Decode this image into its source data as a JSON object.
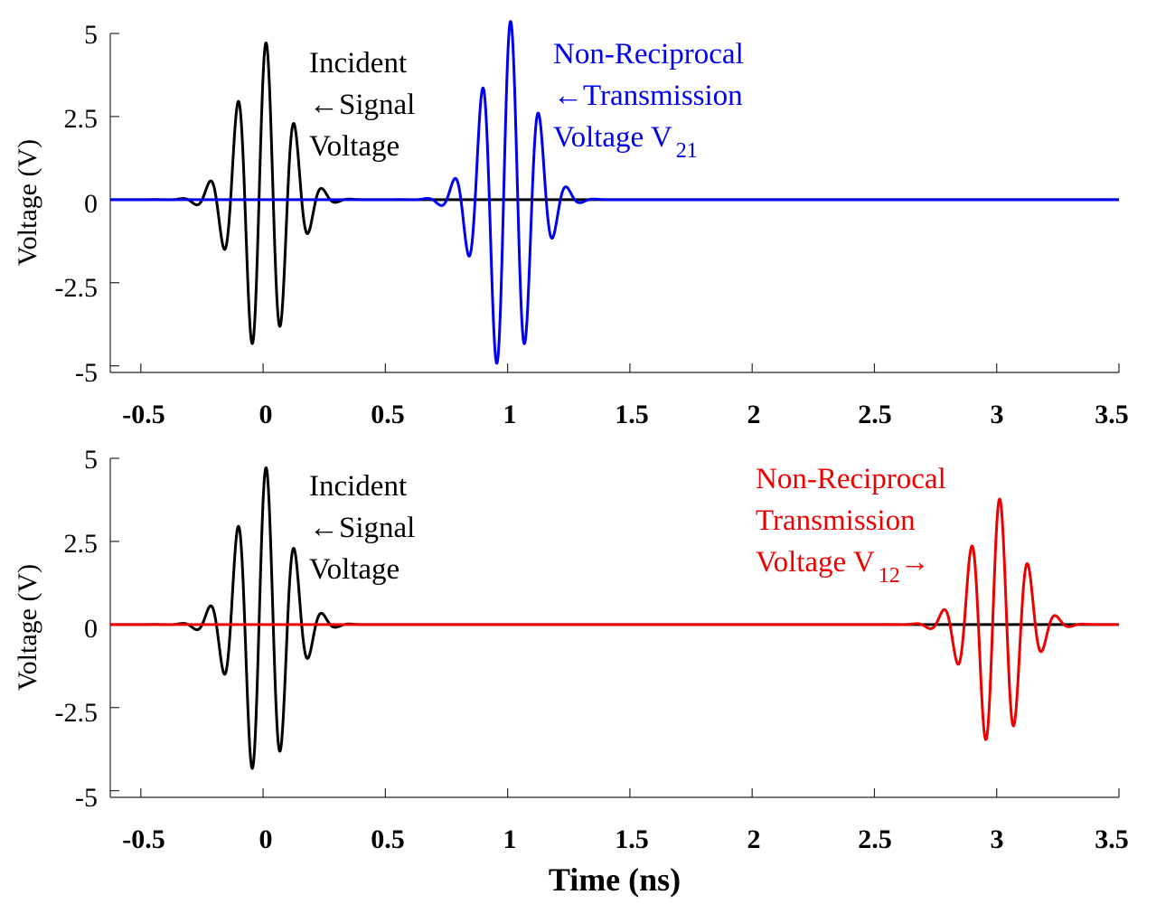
{
  "chart_data": [
    {
      "type": "line",
      "ylabel": "Voltage (V)",
      "xlabel": "",
      "xlim": [
        -0.625,
        3.5
      ],
      "ylim": [
        -5.2,
        5.0
      ],
      "xticks": [
        "-0.5",
        "0",
        "0.5",
        "1",
        "1.5",
        "2",
        "2.5",
        "3",
        "3.5"
      ],
      "yticks": [
        "5",
        "2.5",
        "0",
        "-2.5",
        "-5"
      ],
      "series": [
        {
          "color": "#000000",
          "waveform": {
            "center": 0.0,
            "amplitude": 4.75,
            "sigma": 0.105,
            "frequency": 8.6,
            "phase": 0.9
          }
        },
        {
          "color": "#0000ee",
          "waveform": {
            "center": 1.0,
            "amplitude": 5.4,
            "sigma": 0.105,
            "frequency": 8.6,
            "phase": 0.9
          }
        }
      ],
      "annotations": [
        {
          "lines": [
            "Incident",
            "←Signal",
            "Voltage"
          ],
          "color": "#000000"
        },
        {
          "lines": [
            "Non-Reciprocal",
            "←Transmission",
            "Voltage V"
          ],
          "subscript": "21",
          "color": "#0000ee"
        }
      ]
    },
    {
      "type": "line",
      "ylabel": "Voltage (V)",
      "xlabel": "Time (ns)",
      "xlim": [
        -0.625,
        3.5
      ],
      "ylim": [
        -5.2,
        5.0
      ],
      "xticks": [
        "-0.5",
        "0",
        "0.5",
        "1",
        "1.5",
        "2",
        "2.5",
        "3",
        "3.5"
      ],
      "yticks": [
        "5",
        "2.5",
        "0",
        "-2.5",
        "-5"
      ],
      "series": [
        {
          "color": "#000000",
          "waveform": {
            "center": 0.0,
            "amplitude": 4.75,
            "sigma": 0.105,
            "frequency": 8.6,
            "phase": 0.9
          }
        },
        {
          "color": "#ee0000",
          "waveform": {
            "center": 3.0,
            "amplitude": 3.8,
            "sigma": 0.105,
            "frequency": 8.6,
            "phase": 0.9
          }
        }
      ],
      "annotations": [
        {
          "lines": [
            "Incident",
            "←Signal",
            "Voltage"
          ],
          "color": "#000000"
        },
        {
          "lines": [
            "Non-Reciprocal",
            "Transmission",
            "Voltage V"
          ],
          "subscript": "12",
          "suffix": "→",
          "color": "#ee0000"
        }
      ]
    }
  ]
}
